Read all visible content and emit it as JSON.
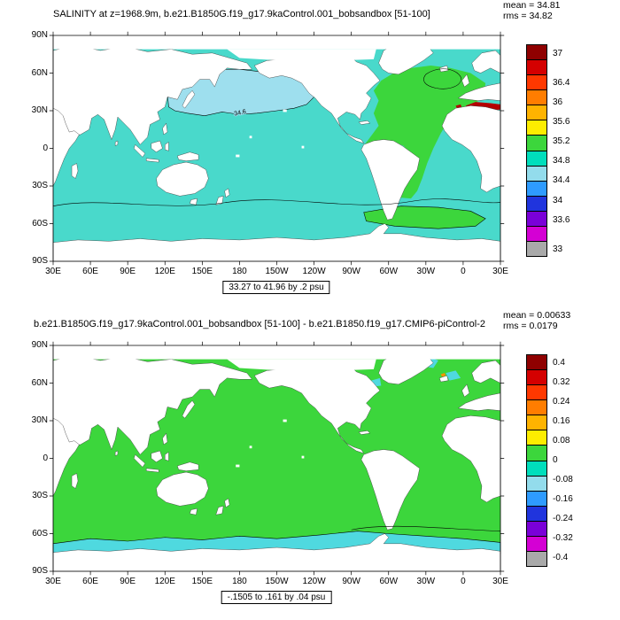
{
  "panels": [
    {
      "id": "salinity-map",
      "title": "SALINITY at z=1968.9m, b.e21.B1850G.f19_g17.9kaControl.001_bobsandbox [51-100]",
      "stats": {
        "mean": "mean = 34.81",
        "rms": "rms = 34.82"
      },
      "range_label": "33.27 to 41.96 by .2 psu",
      "contour_label": "34.6",
      "lat_ticks": [
        "90N",
        "60N",
        "30N",
        "0",
        "30S",
        "60S",
        "90S"
      ],
      "lon_ticks": [
        "30E",
        "60E",
        "90E",
        "120E",
        "150E",
        "180",
        "150W",
        "120W",
        "90W",
        "60W",
        "30W",
        "0",
        "30E"
      ],
      "colorbar": {
        "labels": [
          "37",
          "36.4",
          "36",
          "35.6",
          "35.2",
          "34.8",
          "34.4",
          "34",
          "33.6",
          "33"
        ],
        "values": [
          37,
          36.4,
          36,
          35.6,
          35.2,
          34.8,
          34.4,
          34,
          33.6,
          33
        ],
        "vmax": 37.2,
        "vmin": 32.85,
        "colors": [
          "#8f0000",
          "#d40000",
          "#ff3800",
          "#ff7d00",
          "#ffb300",
          "#fded00",
          "#3cd63c",
          "#00debc",
          "#93dcec",
          "#2e9bff",
          "#2034dd",
          "#7a00d8",
          "#d400d4",
          "#a9a9a9"
        ]
      },
      "map_colors": {
        "ocean": "#49d9cb",
        "npacific": "#9edfee",
        "atlantic": "#3cd63c",
        "southern": "#3cd63c",
        "med_red": "#b40000",
        "land": "#ffffff",
        "contour": "#000000"
      }
    },
    {
      "id": "difference-map",
      "title": "b.e21.B1850G.f19_g17.9kaControl.001_bobsandbox [51-100] - b.e21.B1850.f19_g17.CMIP6-piControl-2",
      "stats": {
        "mean": "mean = 0.00633",
        "rms": "rms = 0.0179"
      },
      "range_label": "-.1505 to .161 by .04 psu",
      "contour_label": "",
      "lat_ticks": [
        "90N",
        "60N",
        "30N",
        "0",
        "30S",
        "60S",
        "90S"
      ],
      "lon_ticks": [
        "30E",
        "60E",
        "90E",
        "120E",
        "150E",
        "180",
        "150W",
        "120W",
        "90W",
        "60W",
        "30W",
        "0",
        "30E"
      ],
      "colorbar": {
        "labels": [
          "0.4",
          "0.32",
          "0.24",
          "0.16",
          "0.08",
          "0",
          "-0.08",
          "-0.16",
          "-0.24",
          "-0.32",
          "-0.4"
        ],
        "values": [
          0.4,
          0.32,
          0.24,
          0.16,
          0.08,
          0,
          -0.08,
          -0.16,
          -0.24,
          -0.32,
          -0.4
        ],
        "vmax": 0.437,
        "vmin": -0.437,
        "colors": [
          "#8f0000",
          "#d40000",
          "#ff3800",
          "#ff7d00",
          "#ffb300",
          "#fded00",
          "#3cd63c",
          "#00debc",
          "#93dcec",
          "#2e9bff",
          "#2034dd",
          "#7a00d8",
          "#d400d4",
          "#a9a9a9"
        ]
      },
      "map_colors": {
        "ocean": "#3cd63c",
        "band": "#4fd9df",
        "patch": "#4fd9df",
        "speck_orange": "#ff9100",
        "speck_yellow": "#ffe800",
        "land": "#ffffff",
        "contour": "#000000"
      }
    }
  ],
  "chart_data": [
    {
      "type": "heatmap",
      "title": "SALINITY at z=1968.9m, b.e21.B1850G.f19_g17.9kaControl.001_bobsandbox [51-100]",
      "variable": "SALINITY",
      "units": "psu",
      "mean": 34.81,
      "rms": 34.82,
      "levels": "33.27 to 41.96 by .2 psu",
      "data_range": [
        33.27,
        41.96
      ],
      "contour_interval": 0.2,
      "labeled_contour": 34.6,
      "colorbar_ticks": [
        37,
        36.4,
        36,
        35.6,
        35.2,
        34.8,
        34.4,
        34,
        33.6,
        33
      ],
      "x_ticks": [
        "30E",
        "60E",
        "90E",
        "120E",
        "150E",
        "180",
        "150W",
        "120W",
        "90W",
        "60W",
        "30W",
        "0",
        "30E"
      ],
      "y_ticks": [
        "90N",
        "60N",
        "30N",
        "0",
        "30S",
        "60S",
        "90S"
      ],
      "reading": "Pacific-centered world map of deep ocean salinity at 1968.9 m; Indian and Pacific basins about 34.6-34.8 psu (cyan), North Pacific 34.4-34.6 (light blue inside labeled 34.6 contour), Atlantic and circumpolar band 34.8-35.2 (green), Mediterranean outflow region above 37 (dark red), land and shallow seas blank white"
    },
    {
      "type": "heatmap",
      "title": "b.e21.B1850G.f19_g17.9kaControl.001_bobsandbox [51-100] - b.e21.B1850.f19_g17.CMIP6-piControl-2",
      "variable": "SALINITY difference",
      "units": "psu",
      "mean": 0.00633,
      "rms": 0.0179,
      "levels": "-.1505 to .161 by .04 psu",
      "data_range": [
        -0.1505,
        0.161
      ],
      "contour_interval": 0.04,
      "colorbar_ticks": [
        0.4,
        0.32,
        0.24,
        0.16,
        0.08,
        0,
        -0.08,
        -0.16,
        -0.24,
        -0.32,
        -0.4
      ],
      "x_ticks": [
        "30E",
        "60E",
        "90E",
        "120E",
        "150E",
        "180",
        "150W",
        "120W",
        "90W",
        "60W",
        "30W",
        "0",
        "30E"
      ],
      "y_ticks": [
        "90N",
        "60N",
        "30N",
        "0",
        "30S",
        "60S",
        "90S"
      ],
      "reading": "Difference map is nearly uniform 0 to +0.08 psu (green) over all oceans, with a -0.08 to 0 (cyan) band along the Antarctic margin, small cyan patches around Greenland and the subpolar North Atlantic, and isolated warm-colored specks in the northwest Pacific"
    }
  ]
}
